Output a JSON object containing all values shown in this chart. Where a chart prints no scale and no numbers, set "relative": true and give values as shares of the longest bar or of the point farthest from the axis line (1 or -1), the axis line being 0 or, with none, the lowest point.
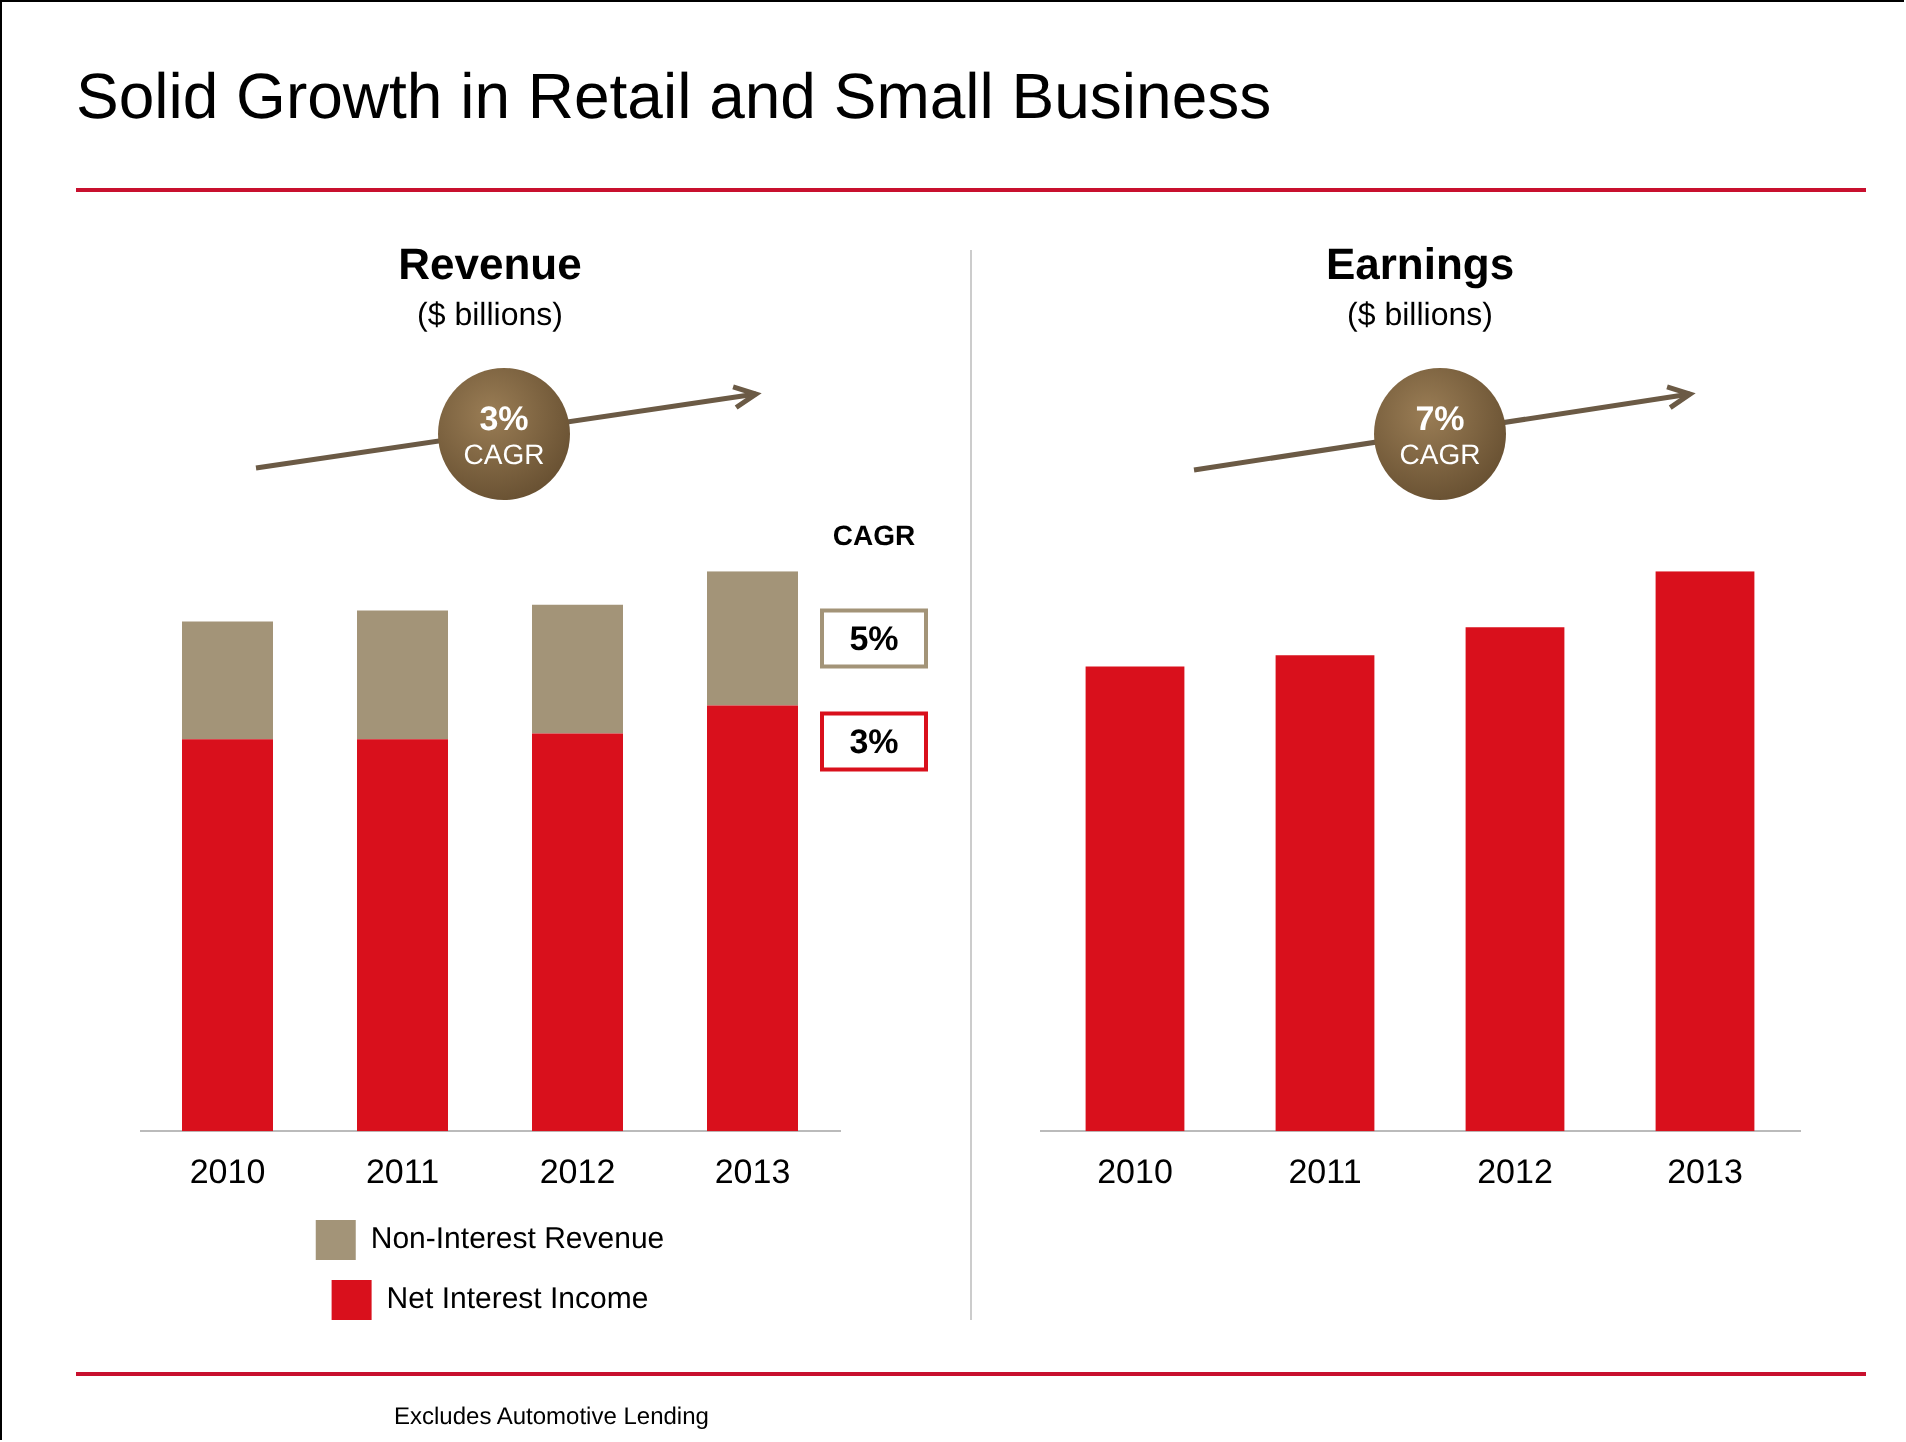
{
  "chart_data": [
    {
      "type": "bar",
      "title": "Revenue",
      "subtitle": "($ billions)",
      "relative": true,
      "stacked": true,
      "legend": "bottom",
      "categories": [
        "2010",
        "2011",
        "2012",
        "2013"
      ],
      "series": [
        {
          "name": "Net Interest Income",
          "color": "#d9101c",
          "values": [
            0.7,
            0.7,
            0.71,
            0.76
          ]
        },
        {
          "name": "Non-Interest Revenue",
          "color": "#a39478",
          "values": [
            0.21,
            0.23,
            0.23,
            0.24
          ]
        }
      ],
      "annotations": [
        "Solid Growth in Retail and Small Business",
        "3% CAGR",
        "CAGR",
        "5%",
        "3%",
        "Excludes Automotive Lending"
      ]
    },
    {
      "type": "bar",
      "title": "Earnings",
      "subtitle": "($ billions)",
      "relative": true,
      "categories": [
        "2010",
        "2011",
        "2012",
        "2013"
      ],
      "series": [
        {
          "color": "#d9101c",
          "values": [
            0.83,
            0.85,
            0.9,
            1.0
          ]
        }
      ],
      "annotations": [
        "7% CAGR"
      ]
    }
  ]
}
